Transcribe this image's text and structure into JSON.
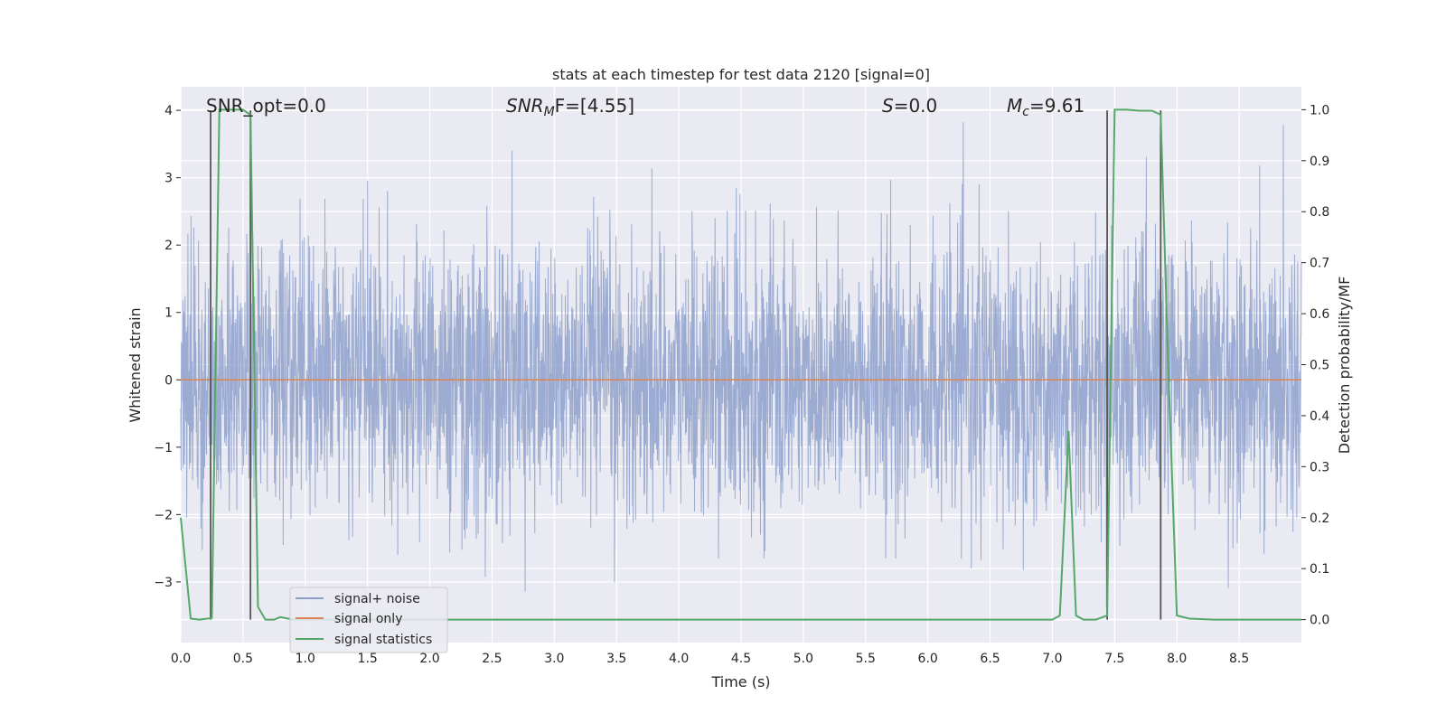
{
  "chart_data": {
    "type": "line",
    "title": "stats at each timestep for test data 2120 [signal=0]",
    "xlabel": "Time (s)",
    "ylabel": "Whitened strain",
    "y2label": "Detection probability/MF",
    "xlim": [
      0.0,
      9.0
    ],
    "ylim": [
      -3.9,
      4.35
    ],
    "y2lim": [
      -0.045,
      1.045
    ],
    "xticks": [
      "0.0",
      "0.5",
      "1.0",
      "1.5",
      "2.0",
      "2.5",
      "3.0",
      "3.5",
      "4.0",
      "4.5",
      "5.0",
      "5.5",
      "6.0",
      "6.5",
      "7.0",
      "7.5",
      "8.0",
      "8.5"
    ],
    "xtick_values": [
      0.0,
      0.5,
      1.0,
      1.5,
      2.0,
      2.5,
      3.0,
      3.5,
      4.0,
      4.5,
      5.0,
      5.5,
      6.0,
      6.5,
      7.0,
      7.5,
      8.0,
      8.5
    ],
    "yticks": [
      "−3",
      "−2",
      "−1",
      "0",
      "1",
      "2",
      "3",
      "4"
    ],
    "ytick_values": [
      -3,
      -2,
      -1,
      0,
      1,
      2,
      3,
      4
    ],
    "y2ticks": [
      "0.0",
      "0.1",
      "0.2",
      "0.3",
      "0.4",
      "0.5",
      "0.6",
      "0.7",
      "0.8",
      "0.9",
      "1.0"
    ],
    "y2tick_values": [
      0.0,
      0.1,
      0.2,
      0.3,
      0.4,
      0.5,
      0.6,
      0.7,
      0.8,
      0.9,
      1.0
    ],
    "grid": true,
    "legend_position": "lower-left",
    "series": [
      {
        "name": "signal+ noise",
        "axis": "left",
        "color": "#8da0cb",
        "description": "whitened noise, roughly within -3.6 to 4.0",
        "noise_envelope": [
          -3.6,
          4.0
        ],
        "noise_sigma": 1.0
      },
      {
        "name": "signal only",
        "axis": "left",
        "color": "#dd8452",
        "x": [
          0.0,
          9.0
        ],
        "y": [
          0.0,
          0.0
        ]
      },
      {
        "name": "signal statistics",
        "axis": "right",
        "color": "#55a868",
        "x": [
          0.0,
          0.08,
          0.15,
          0.25,
          0.31,
          0.4,
          0.5,
          0.56,
          0.62,
          0.68,
          0.75,
          0.8,
          0.9,
          1.0,
          2.0,
          4.0,
          6.0,
          7.0,
          7.06,
          7.13,
          7.19,
          7.25,
          7.35,
          7.44,
          7.5,
          7.6,
          7.7,
          7.8,
          7.87,
          7.93,
          8.0,
          8.1,
          8.3,
          9.0
        ],
        "y": [
          0.2,
          0.002,
          0.0,
          0.003,
          1.0,
          1.0,
          1.0,
          0.99,
          0.025,
          0.0,
          0.0,
          0.005,
          0.0,
          0.0,
          0.0,
          0.0,
          0.0,
          0.0,
          0.008,
          0.37,
          0.008,
          0.0,
          0.0,
          0.008,
          1.0,
          1.0,
          0.998,
          0.998,
          0.99,
          0.5,
          0.008,
          0.002,
          0.0,
          0.0
        ]
      }
    ],
    "vertical_markers": {
      "color": "#555555",
      "x": [
        0.24,
        0.56,
        7.44,
        7.87
      ]
    },
    "annotations": {
      "snr_opt": "SNR_opt=0.0",
      "snr_mf_base": "SNR",
      "snr_mf_sub": "M",
      "snr_mf_rest": "F=[4.55]",
      "s_label": "S",
      "s_value": "=0.0",
      "mc_base": "M",
      "mc_sub": "c",
      "mc_value": "=9.61"
    }
  }
}
